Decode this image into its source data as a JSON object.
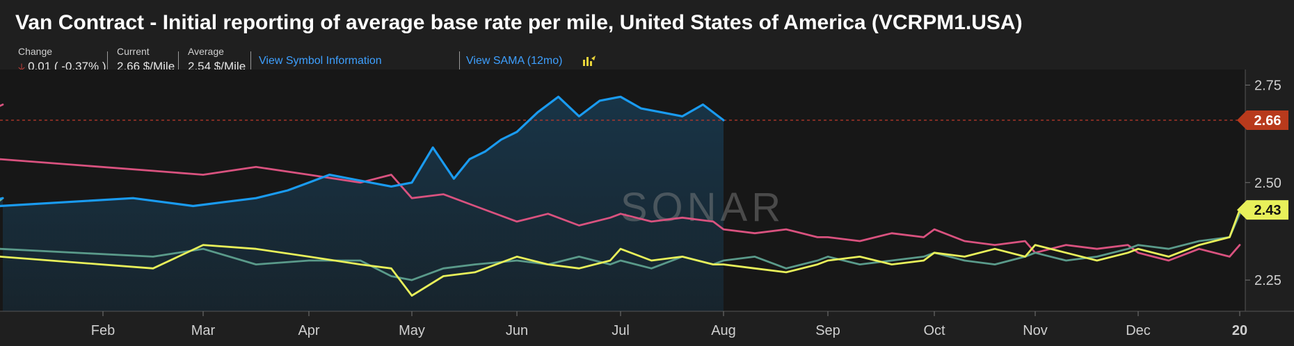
{
  "title": "Van Contract - Initial reporting of average base rate per mile, United States of America (VCRPM1.USA)",
  "stats": {
    "change_label": "Change",
    "change_value": "0.01 ( -0.37% )",
    "current_label": "Current",
    "current_value": "2.66 $/Mile",
    "average_label": "Average",
    "average_value": "2.54 $/Mile"
  },
  "links": {
    "symbol_info": "View Symbol Information",
    "sama": "View SAMA (12mo)"
  },
  "watermark": "SONAR",
  "colors": {
    "background": "#1f1f1f",
    "current_series": "#1a9bf0",
    "series_2": "#d9527f",
    "series_3": "#e8f05a",
    "series_4": "#5a9a8a",
    "current_marker": "#b83a1c",
    "end_marker": "#e8f05a",
    "change_arrow": "#e2463f",
    "link": "#3ea0ff"
  },
  "icons": {
    "change_direction": "down-arrow-icon",
    "sama": "chart-hand-icon"
  },
  "chart_data": {
    "type": "line",
    "x_tick_labels": [
      "Feb",
      "Mar",
      "Apr",
      "May",
      "Jun",
      "Jul",
      "Aug",
      "Sep",
      "Oct",
      "Nov",
      "Dec",
      "20"
    ],
    "y_ticks": [
      2.25,
      2.5,
      2.75
    ],
    "ylim": [
      2.17,
      2.79
    ],
    "grid": false,
    "current_value_label": "2.66",
    "end_value_label": "2.43",
    "reference_line": 2.66,
    "series": [
      {
        "color": "#d9527f",
        "x": [
          0.0,
          0.3,
          0.5,
          0.8,
          1.0,
          1.5,
          2.0,
          2.5,
          3.0,
          3.5,
          3.8,
          4.0,
          4.3,
          4.6,
          5.0,
          5.3,
          5.6,
          5.9,
          6.0,
          6.3,
          6.6,
          6.9,
          7.0,
          7.3,
          7.6,
          7.9,
          8.0,
          8.3,
          8.6,
          8.9,
          9.0,
          9.3,
          9.6,
          9.9,
          10.0,
          10.3,
          10.6,
          10.9,
          11.0,
          11.3,
          11.6,
          11.9,
          12.0
        ],
        "values": [
          2.7,
          2.61,
          2.57,
          2.54,
          2.56,
          2.53,
          2.52,
          2.54,
          2.52,
          2.5,
          2.52,
          2.46,
          2.47,
          2.44,
          2.4,
          2.42,
          2.39,
          2.41,
          2.42,
          2.4,
          2.41,
          2.4,
          2.38,
          2.37,
          2.38,
          2.36,
          2.36,
          2.35,
          2.37,
          2.36,
          2.38,
          2.35,
          2.34,
          2.35,
          2.32,
          2.34,
          2.33,
          2.34,
          2.32,
          2.3,
          2.33,
          2.31,
          2.34
        ]
      },
      {
        "color": "#5a9a8a",
        "x": [
          0.0,
          0.3,
          0.5,
          0.8,
          1.0,
          1.5,
          2.0,
          2.5,
          3.0,
          3.5,
          3.8,
          4.0,
          4.3,
          4.6,
          5.0,
          5.3,
          5.6,
          5.9,
          6.0,
          6.3,
          6.6,
          6.9,
          7.0,
          7.3,
          7.6,
          7.9,
          8.0,
          8.3,
          8.6,
          8.9,
          9.0,
          9.3,
          9.6,
          9.9,
          10.0,
          10.3,
          10.6,
          10.9,
          11.0,
          11.3,
          11.6,
          11.9,
          12.0
        ],
        "values": [
          2.46,
          2.3,
          2.32,
          2.34,
          2.33,
          2.31,
          2.33,
          2.29,
          2.3,
          2.3,
          2.26,
          2.25,
          2.28,
          2.29,
          2.3,
          2.29,
          2.31,
          2.29,
          2.3,
          2.28,
          2.31,
          2.29,
          2.3,
          2.31,
          2.28,
          2.3,
          2.31,
          2.29,
          2.3,
          2.31,
          2.32,
          2.3,
          2.29,
          2.31,
          2.32,
          2.3,
          2.31,
          2.33,
          2.34,
          2.33,
          2.35,
          2.36,
          2.42
        ]
      },
      {
        "color": "#e8f05a",
        "x": [
          0.0,
          0.3,
          0.5,
          0.8,
          1.0,
          1.5,
          2.0,
          2.5,
          3.0,
          3.5,
          3.8,
          4.0,
          4.3,
          4.6,
          5.0,
          5.3,
          5.6,
          5.9,
          6.0,
          6.3,
          6.6,
          6.9,
          7.0,
          7.3,
          7.6,
          7.9,
          8.0,
          8.3,
          8.6,
          8.9,
          9.0,
          9.3,
          9.6,
          9.9,
          10.0,
          10.3,
          10.6,
          10.9,
          11.0,
          11.3,
          11.6,
          11.9,
          12.0
        ],
        "values": [
          2.46,
          2.38,
          2.34,
          2.35,
          2.31,
          2.28,
          2.34,
          2.33,
          2.31,
          2.29,
          2.28,
          2.21,
          2.26,
          2.27,
          2.31,
          2.29,
          2.28,
          2.3,
          2.33,
          2.3,
          2.31,
          2.29,
          2.29,
          2.28,
          2.27,
          2.29,
          2.3,
          2.31,
          2.29,
          2.3,
          2.32,
          2.31,
          2.33,
          2.31,
          2.34,
          2.32,
          2.3,
          2.32,
          2.33,
          2.31,
          2.34,
          2.36,
          2.43
        ]
      },
      {
        "color": "#1a9bf0",
        "x": [
          0.0,
          0.2,
          0.4,
          0.6,
          0.8,
          1.0,
          1.3,
          1.6,
          1.9,
          2.2,
          2.5,
          2.8,
          3.0,
          3.2,
          3.4,
          3.6,
          3.8,
          4.0,
          4.2,
          4.4,
          4.55,
          4.7,
          4.85,
          5.0,
          5.2,
          5.4,
          5.6,
          5.8,
          6.0,
          6.2,
          6.4,
          6.6,
          6.8,
          7.0
        ],
        "values": [
          2.46,
          2.41,
          2.38,
          2.39,
          2.41,
          2.44,
          2.46,
          2.45,
          2.44,
          2.45,
          2.46,
          2.48,
          2.5,
          2.52,
          2.51,
          2.5,
          2.49,
          2.5,
          2.59,
          2.51,
          2.56,
          2.58,
          2.61,
          2.63,
          2.68,
          2.72,
          2.67,
          2.71,
          2.72,
          2.69,
          2.68,
          2.67,
          2.7,
          2.66
        ]
      }
    ]
  }
}
